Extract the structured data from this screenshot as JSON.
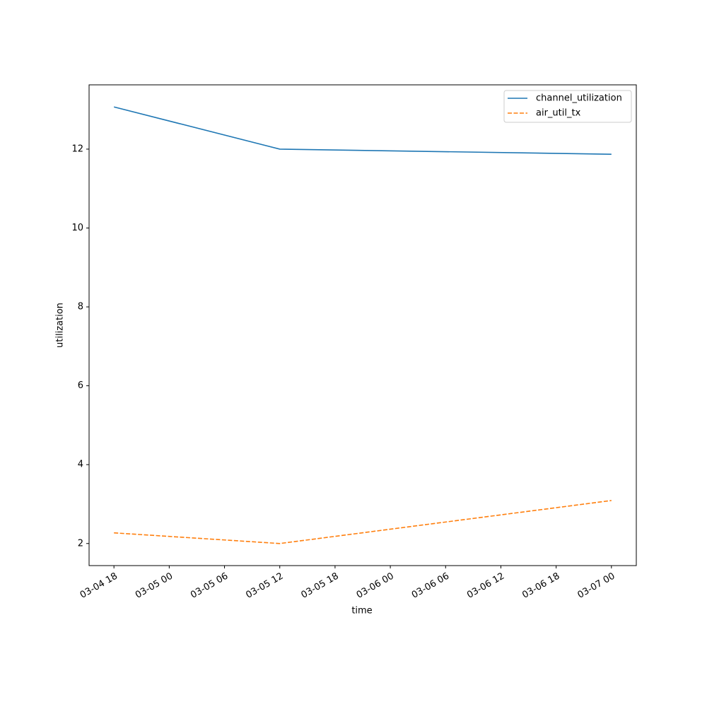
{
  "chart_data": {
    "type": "line",
    "x_label": "time",
    "y_label": "utilization",
    "x": [
      "03-04 18",
      "03-05 12",
      "03-07 00"
    ],
    "series": [
      {
        "name": "channel_utilization",
        "color": "#1f77b4",
        "linestyle": "solid",
        "values": [
          13.07,
          12.0,
          11.87
        ]
      },
      {
        "name": "air_util_tx",
        "color": "#ff7f0e",
        "linestyle": "dashed",
        "values": [
          2.27,
          2.0,
          3.09
        ]
      }
    ],
    "xticks": [
      "03-04 18",
      "03-05 00",
      "03-05 06",
      "03-05 12",
      "03-05 18",
      "03-06 00",
      "03-06 06",
      "03-06 12",
      "03-06 18",
      "03-07 00"
    ],
    "ylim": [
      1.44,
      13.63
    ],
    "yticks": [
      2,
      4,
      6,
      8,
      10,
      12
    ],
    "legend": "upper right"
  }
}
